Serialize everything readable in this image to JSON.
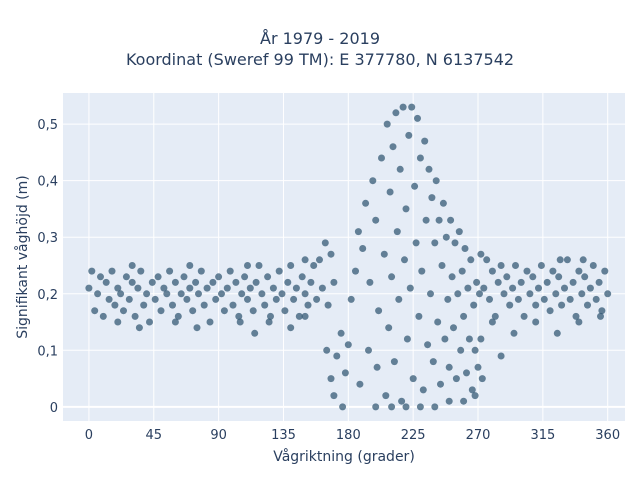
{
  "chart_data": {
    "type": "scatter",
    "title_lines": [
      "År 1979 - 2019",
      "Koordinat (Sweref 99 TM): E 377780, N 6137542"
    ],
    "xlabel": "Vågriktning (grader)",
    "ylabel": "Signifikant våghöjd (m)",
    "xlim": [
      -18,
      372
    ],
    "ylim": [
      -0.025,
      0.555
    ],
    "x_ticks": [
      0,
      45,
      90,
      135,
      180,
      225,
      270,
      315,
      360
    ],
    "x_tick_labels": [
      "0",
      "45",
      "90",
      "135",
      "180",
      "225",
      "270",
      "315",
      "360"
    ],
    "y_ticks": [
      0,
      0.1,
      0.2,
      0.3,
      0.4,
      0.5
    ],
    "y_tick_labels": [
      "0",
      "0,1",
      "0,2",
      "0,3",
      "0,4",
      "0,5"
    ],
    "grid": true,
    "background_color": "#e5ecf6",
    "marker_color": "#2f5570",
    "series": [
      {
        "points": [
          [
            0,
            0.21
          ],
          [
            2,
            0.24
          ],
          [
            4,
            0.17
          ],
          [
            6,
            0.2
          ],
          [
            8,
            0.23
          ],
          [
            10,
            0.16
          ],
          [
            12,
            0.22
          ],
          [
            14,
            0.19
          ],
          [
            16,
            0.24
          ],
          [
            18,
            0.18
          ],
          [
            20,
            0.21
          ],
          [
            22,
            0.2
          ],
          [
            24,
            0.17
          ],
          [
            26,
            0.23
          ],
          [
            28,
            0.19
          ],
          [
            30,
            0.22
          ],
          [
            32,
            0.16
          ],
          [
            34,
            0.21
          ],
          [
            36,
            0.24
          ],
          [
            38,
            0.18
          ],
          [
            40,
            0.2
          ],
          [
            42,
            0.15
          ],
          [
            44,
            0.22
          ],
          [
            46,
            0.19
          ],
          [
            48,
            0.23
          ],
          [
            50,
            0.17
          ],
          [
            52,
            0.21
          ],
          [
            54,
            0.2
          ],
          [
            56,
            0.24
          ],
          [
            58,
            0.18
          ],
          [
            60,
            0.22
          ],
          [
            62,
            0.16
          ],
          [
            64,
            0.2
          ],
          [
            66,
            0.23
          ],
          [
            68,
            0.19
          ],
          [
            70,
            0.21
          ],
          [
            72,
            0.17
          ],
          [
            74,
            0.22
          ],
          [
            76,
            0.2
          ],
          [
            78,
            0.24
          ],
          [
            80,
            0.18
          ],
          [
            82,
            0.21
          ],
          [
            84,
            0.15
          ],
          [
            86,
            0.22
          ],
          [
            88,
            0.19
          ],
          [
            90,
            0.23
          ],
          [
            92,
            0.2
          ],
          [
            94,
            0.17
          ],
          [
            96,
            0.21
          ],
          [
            98,
            0.24
          ],
          [
            100,
            0.18
          ],
          [
            102,
            0.22
          ],
          [
            104,
            0.16
          ],
          [
            106,
            0.2
          ],
          [
            108,
            0.23
          ],
          [
            110,
            0.19
          ],
          [
            112,
            0.21
          ],
          [
            114,
            0.17
          ],
          [
            116,
            0.22
          ],
          [
            118,
            0.25
          ],
          [
            120,
            0.2
          ],
          [
            122,
            0.18
          ],
          [
            124,
            0.23
          ],
          [
            126,
            0.16
          ],
          [
            128,
            0.21
          ],
          [
            130,
            0.19
          ],
          [
            132,
            0.24
          ],
          [
            134,
            0.2
          ],
          [
            136,
            0.17
          ],
          [
            138,
            0.22
          ],
          [
            140,
            0.25
          ],
          [
            142,
            0.19
          ],
          [
            144,
            0.21
          ],
          [
            146,
            0.16
          ],
          [
            148,
            0.23
          ],
          [
            150,
            0.2
          ],
          [
            152,
            0.18
          ],
          [
            154,
            0.22
          ],
          [
            156,
            0.25
          ],
          [
            158,
            0.19
          ],
          [
            20,
            0.15
          ],
          [
            35,
            0.14
          ],
          [
            60,
            0.15
          ],
          [
            75,
            0.14
          ],
          [
            105,
            0.15
          ],
          [
            115,
            0.13
          ],
          [
            125,
            0.15
          ],
          [
            140,
            0.14
          ],
          [
            150,
            0.16
          ],
          [
            30,
            0.25
          ],
          [
            70,
            0.25
          ],
          [
            110,
            0.25
          ],
          [
            150,
            0.26
          ],
          [
            160,
            0.26
          ],
          [
            162,
            0.21
          ],
          [
            164,
            0.29
          ],
          [
            166,
            0.18
          ],
          [
            168,
            0.27
          ],
          [
            170,
            0.22
          ],
          [
            272,
            0.27
          ],
          [
            274,
            0.21
          ],
          [
            276,
            0.26
          ],
          [
            278,
            0.19
          ],
          [
            280,
            0.24
          ],
          [
            282,
            0.16
          ],
          [
            284,
            0.22
          ],
          [
            286,
            0.25
          ],
          [
            288,
            0.2
          ],
          [
            290,
            0.23
          ],
          [
            292,
            0.18
          ],
          [
            294,
            0.21
          ],
          [
            296,
            0.25
          ],
          [
            298,
            0.19
          ],
          [
            300,
            0.22
          ],
          [
            302,
            0.16
          ],
          [
            304,
            0.24
          ],
          [
            306,
            0.2
          ],
          [
            308,
            0.23
          ],
          [
            310,
            0.18
          ],
          [
            312,
            0.21
          ],
          [
            314,
            0.25
          ],
          [
            316,
            0.19
          ],
          [
            318,
            0.22
          ],
          [
            320,
            0.17
          ],
          [
            322,
            0.24
          ],
          [
            324,
            0.2
          ],
          [
            326,
            0.23
          ],
          [
            328,
            0.18
          ],
          [
            330,
            0.21
          ],
          [
            332,
            0.26
          ],
          [
            334,
            0.19
          ],
          [
            336,
            0.22
          ],
          [
            338,
            0.16
          ],
          [
            340,
            0.24
          ],
          [
            342,
            0.2
          ],
          [
            344,
            0.23
          ],
          [
            346,
            0.18
          ],
          [
            348,
            0.21
          ],
          [
            350,
            0.25
          ],
          [
            352,
            0.19
          ],
          [
            354,
            0.22
          ],
          [
            356,
            0.17
          ],
          [
            358,
            0.24
          ],
          [
            360,
            0.2
          ],
          [
            280,
            0.15
          ],
          [
            295,
            0.13
          ],
          [
            310,
            0.15
          ],
          [
            325,
            0.13
          ],
          [
            340,
            0.15
          ],
          [
            355,
            0.16
          ],
          [
            327,
            0.26
          ],
          [
            343,
            0.26
          ],
          [
            172,
            0.09
          ],
          [
            175,
            0.13
          ],
          [
            178,
            0.06
          ],
          [
            180,
            0.11
          ],
          [
            182,
            0.19
          ],
          [
            185,
            0.24
          ],
          [
            187,
            0.31
          ],
          [
            188,
            0.04
          ],
          [
            190,
            0.28
          ],
          [
            192,
            0.36
          ],
          [
            194,
            0.1
          ],
          [
            195,
            0.22
          ],
          [
            197,
            0.4
          ],
          [
            199,
            0.33
          ],
          [
            200,
            0.07
          ],
          [
            201,
            0.17
          ],
          [
            203,
            0.44
          ],
          [
            205,
            0.27
          ],
          [
            206,
            0.02
          ],
          [
            207,
            0.5
          ],
          [
            208,
            0.14
          ],
          [
            209,
            0.38
          ],
          [
            210,
            0.23
          ],
          [
            211,
            0.46
          ],
          [
            212,
            0.08
          ],
          [
            213,
            0.52
          ],
          [
            214,
            0.31
          ],
          [
            215,
            0.19
          ],
          [
            216,
            0.42
          ],
          [
            217,
            0.01
          ],
          [
            218,
            0.53
          ],
          [
            219,
            0.26
          ],
          [
            220,
            0.35
          ],
          [
            221,
            0.12
          ],
          [
            222,
            0.48
          ],
          [
            223,
            0.21
          ],
          [
            224,
            0.53
          ],
          [
            225,
            0.05
          ],
          [
            226,
            0.39
          ],
          [
            227,
            0.29
          ],
          [
            228,
            0.51
          ],
          [
            229,
            0.16
          ],
          [
            230,
            0.44
          ],
          [
            231,
            0.24
          ],
          [
            232,
            0.03
          ],
          [
            233,
            0.47
          ],
          [
            234,
            0.33
          ],
          [
            235,
            0.11
          ],
          [
            236,
            0.42
          ],
          [
            237,
            0.2
          ],
          [
            238,
            0.37
          ],
          [
            239,
            0.08
          ],
          [
            240,
            0.29
          ],
          [
            241,
            0.4
          ],
          [
            242,
            0.15
          ],
          [
            243,
            0.33
          ],
          [
            244,
            0.04
          ],
          [
            245,
            0.25
          ],
          [
            246,
            0.36
          ],
          [
            247,
            0.12
          ],
          [
            248,
            0.3
          ],
          [
            249,
            0.19
          ],
          [
            250,
            0.07
          ],
          [
            251,
            0.33
          ],
          [
            252,
            0.23
          ],
          [
            253,
            0.14
          ],
          [
            254,
            0.29
          ],
          [
            255,
            0.05
          ],
          [
            256,
            0.2
          ],
          [
            257,
            0.31
          ],
          [
            258,
            0.1
          ],
          [
            259,
            0.24
          ],
          [
            260,
            0.16
          ],
          [
            261,
            0.28
          ],
          [
            262,
            0.06
          ],
          [
            263,
            0.21
          ],
          [
            264,
            0.12
          ],
          [
            265,
            0.26
          ],
          [
            266,
            0.03
          ],
          [
            267,
            0.18
          ],
          [
            268,
            0.1
          ],
          [
            269,
            0.22
          ],
          [
            270,
            0.07
          ],
          [
            271,
            0.2
          ],
          [
            272,
            0.12
          ],
          [
            273,
            0.05
          ],
          [
            165,
            0.1
          ],
          [
            168,
            0.05
          ],
          [
            170,
            0.02
          ],
          [
            176,
            0.0
          ],
          [
            220,
            0.0
          ],
          [
            230,
            0.0
          ],
          [
            240,
            0.0
          ],
          [
            250,
            0.01
          ],
          [
            260,
            0.01
          ],
          [
            268,
            0.02
          ],
          [
            286,
            0.09
          ],
          [
            199,
            0.0
          ],
          [
            210,
            0.0
          ]
        ]
      }
    ]
  }
}
